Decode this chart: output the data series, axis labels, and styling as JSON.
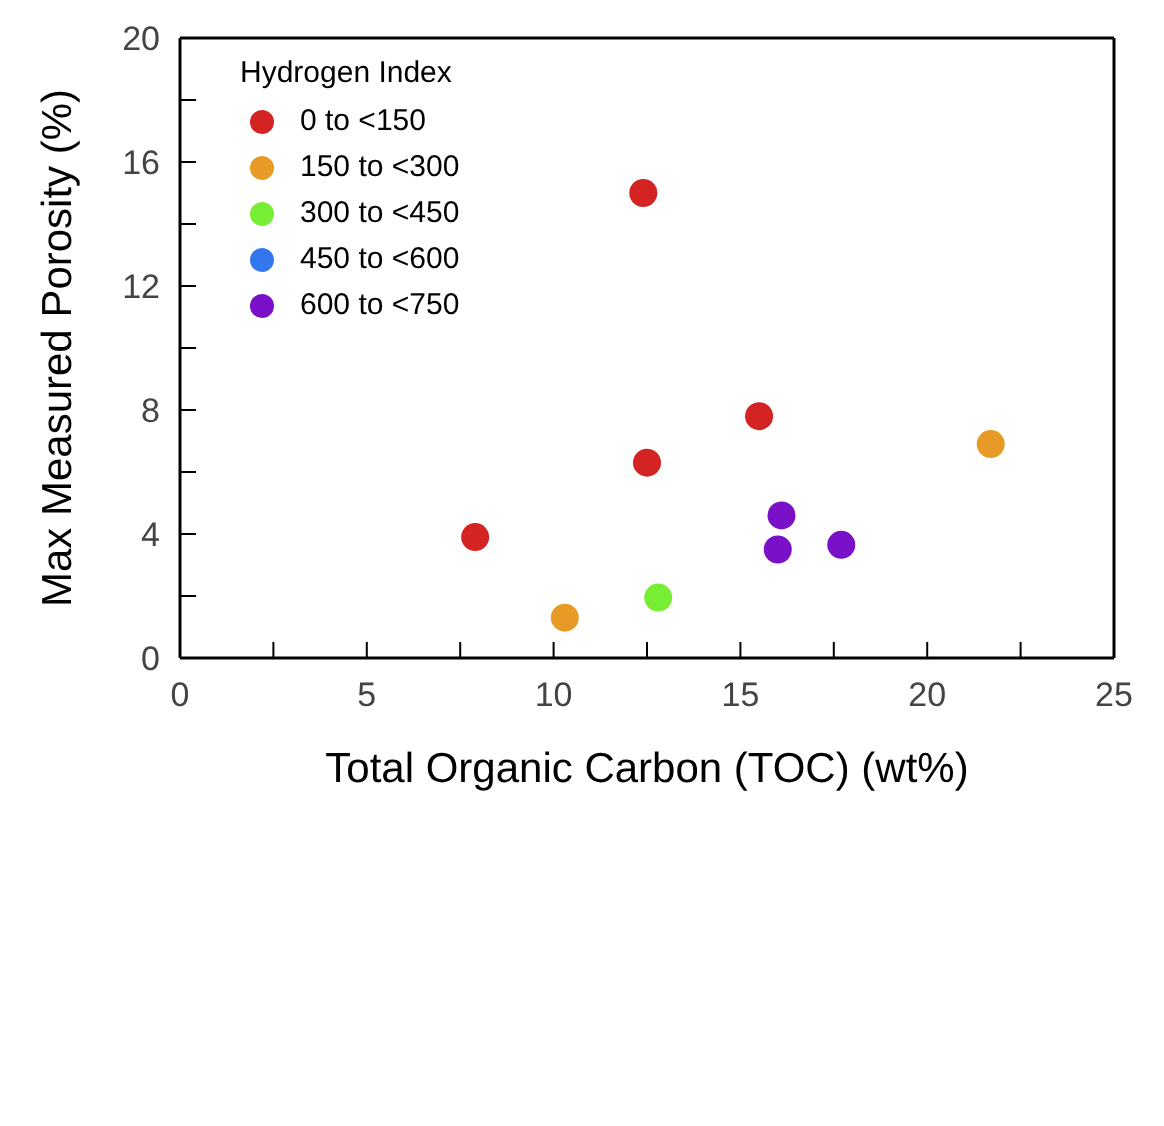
{
  "chart_data": {
    "type": "scatter",
    "xlabel": "Total Organic Carbon (TOC) (wt%)",
    "ylabel": "Max Measured Porosity (%)",
    "legend_title": "Hydrogen Index",
    "legend": "top left",
    "marker": "circle",
    "xlim": [
      0,
      25
    ],
    "xticks": [
      0,
      {
        "value": 2.5,
        "label": null
      },
      5,
      {
        "value": 7.5,
        "label": null
      },
      10,
      {
        "value": 12.5,
        "label": null
      },
      15,
      {
        "value": 17.5,
        "label": null
      },
      20,
      {
        "value": 22.5,
        "label": null
      },
      25
    ],
    "ylim": [
      0,
      20
    ],
    "yticks": [
      0,
      {
        "value": 2,
        "label": null
      },
      4,
      {
        "value": 6,
        "label": null
      },
      8,
      {
        "value": 10,
        "label": null
      },
      12,
      {
        "value": 14,
        "label": null
      },
      16,
      {
        "value": 18,
        "label": null
      },
      20
    ],
    "series": [
      {
        "name": "0 to <150",
        "color": "#d42323",
        "x": [
          12.4,
          15.5,
          12.5,
          7.9
        ],
        "values": [
          15,
          7.8,
          6.3,
          3.9
        ]
      },
      {
        "name": "150 to <300",
        "color": "#e89a26",
        "x": [
          21.7,
          10.3
        ],
        "values": [
          6.9,
          1.3
        ]
      },
      {
        "name": "300 to <450",
        "color": "#77ee33",
        "x": [
          12.8
        ],
        "values": [
          1.95
        ]
      },
      {
        "name": "450 to <600",
        "color": "#3377ee"
      },
      {
        "name": "600 to <750",
        "color": "#7a10c8",
        "x": [
          16.1,
          16,
          17.7
        ],
        "values": [
          4.6,
          3.5,
          3.65
        ]
      }
    ]
  }
}
